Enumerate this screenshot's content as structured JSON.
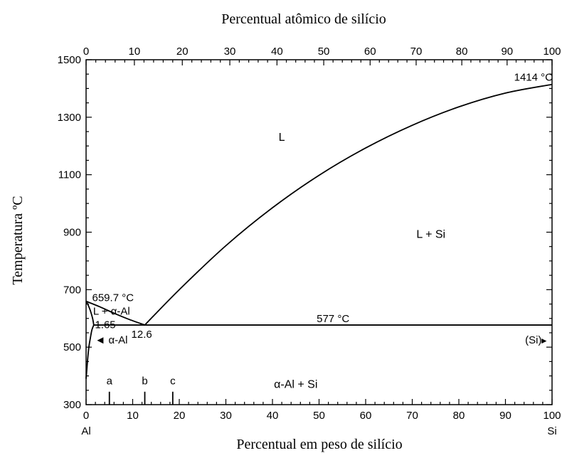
{
  "chart_data": {
    "type": "line",
    "title": "",
    "xlabel": "Percentual em peso de silício",
    "x2label": "Percentual atômico de silício",
    "ylabel": "Temperatura ºC",
    "xlim": [
      0,
      100
    ],
    "ylim": [
      300,
      1500
    ],
    "x_ticks": [
      "0",
      "10",
      "20",
      "30",
      "40",
      "50",
      "60",
      "70",
      "80",
      "90",
      "100"
    ],
    "y_ticks": [
      "300",
      "500",
      "700",
      "900",
      "1100",
      "1300",
      "1500"
    ],
    "top_ticks": [
      {
        "at_pct_at": 0,
        "label": "0"
      },
      {
        "at_pct_at": 10,
        "label": "10"
      },
      {
        "at_pct_at": 20,
        "label": "20"
      },
      {
        "at_pct_at": 30,
        "label": "30"
      },
      {
        "at_pct_at": 40,
        "label": "40"
      },
      {
        "at_pct_at": 50,
        "label": "50"
      },
      {
        "at_pct_at": 60,
        "label": "60"
      },
      {
        "at_pct_at": 70,
        "label": "70"
      },
      {
        "at_pct_at": 80,
        "label": "80"
      },
      {
        "at_pct_at": 90,
        "label": "90"
      },
      {
        "at_pct_at": 100,
        "label": "100"
      }
    ],
    "end_labels": {
      "left": "Al",
      "right": "Si"
    },
    "series": [
      {
        "points": [
          [
            0,
            659.7
          ],
          [
            3,
            640
          ],
          [
            6,
            618
          ],
          [
            9,
            598
          ],
          [
            12.6,
            577
          ]
        ]
      },
      {
        "points": [
          [
            12.6,
            577
          ],
          [
            20,
            700
          ],
          [
            30,
            853
          ],
          [
            40,
            985
          ],
          [
            50,
            1098
          ],
          [
            60,
            1193
          ],
          [
            70,
            1272
          ],
          [
            80,
            1336
          ],
          [
            90,
            1384
          ],
          [
            100,
            1414
          ]
        ]
      },
      {
        "points": [
          [
            0,
            659.7
          ],
          [
            0.4,
            648
          ],
          [
            0.9,
            628
          ],
          [
            1.4,
            600
          ],
          [
            1.65,
            577
          ]
        ]
      },
      {
        "points": [
          [
            0,
            390
          ],
          [
            0.15,
            420
          ],
          [
            0.35,
            460
          ],
          [
            0.6,
            500
          ],
          [
            0.9,
            530
          ],
          [
            1.25,
            560
          ],
          [
            1.65,
            577
          ]
        ]
      },
      {
        "points": [
          [
            1.65,
            577
          ],
          [
            100,
            577
          ]
        ]
      }
    ],
    "markers": [
      {
        "x": 5,
        "label": "a"
      },
      {
        "x": 12.6,
        "label": "b"
      },
      {
        "x": 18.6,
        "label": "c"
      }
    ],
    "annotations": [
      {
        "text": "L",
        "x": 42,
        "y": 1230
      },
      {
        "text": "L + Si",
        "x": 74,
        "y": 893
      },
      {
        "text": "α-Al + Si",
        "x": 45,
        "y": 370
      },
      {
        "text": "1414 °C",
        "x": 96,
        "y": 1440
      },
      {
        "text": "577 °C",
        "x": 53,
        "y": 600
      },
      {
        "text": "659.7 °C",
        "x": 1.3,
        "y": 672
      },
      {
        "text": "L + α-Al",
        "x": 1.5,
        "y": 625
      },
      {
        "text": "1.65",
        "x": 1.9,
        "y": 578
      },
      {
        "text": "12.6",
        "x": 9.7,
        "y": 545
      },
      {
        "text": "◄ α-Al",
        "x": 1.9,
        "y": 525
      },
      {
        "text": "(Si)",
        "x": 96,
        "y": 525
      },
      {
        "text": "►",
        "x": 98.3,
        "y": 525
      }
    ]
  }
}
